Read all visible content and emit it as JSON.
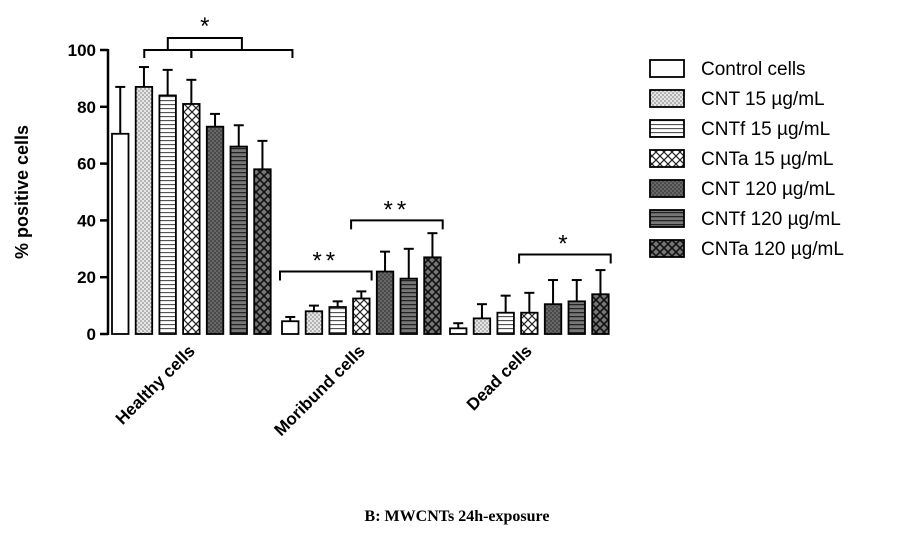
{
  "chart_data": {
    "type": "bar",
    "title": "",
    "xlabel": "",
    "ylabel": "% positive cells",
    "ylim": [
      0,
      100
    ],
    "yticks": [
      0,
      20,
      40,
      60,
      80,
      100
    ],
    "categories": [
      "Healthy cells",
      "Moribund cells",
      "Dead cells"
    ],
    "grid": false,
    "legend_position": "right",
    "series": [
      {
        "name": "Control cells",
        "pattern": "white",
        "values": [
          70.5,
          4.5,
          2.0
        ],
        "errors": [
          16.5,
          1.5,
          1.8
        ]
      },
      {
        "name": "CNT 15 µg/mL",
        "pattern": "dots",
        "values": [
          87.0,
          8.0,
          5.5
        ],
        "errors": [
          7.0,
          2.0,
          5.0
        ]
      },
      {
        "name": "CNTf 15 µg/mL",
        "pattern": "hlines",
        "values": [
          84.0,
          9.5,
          7.5
        ],
        "errors": [
          9.0,
          2.0,
          6.0
        ]
      },
      {
        "name": "CNTa 15 µg/mL",
        "pattern": "crosshatch",
        "values": [
          81.0,
          12.5,
          7.5
        ],
        "errors": [
          8.5,
          2.5,
          7.0
        ]
      },
      {
        "name": "CNT 120 µg/mL",
        "pattern": "dark-dots",
        "values": [
          73.0,
          22.0,
          10.5
        ],
        "errors": [
          4.5,
          7.0,
          8.5
        ]
      },
      {
        "name": "CNTf 120 µg/mL",
        "pattern": "dark-hlines",
        "values": [
          66.0,
          19.5,
          11.5
        ],
        "errors": [
          7.5,
          10.5,
          7.5
        ]
      },
      {
        "name": "CNTa 120 µg/mL",
        "pattern": "dark-cross",
        "values": [
          58.0,
          27.0,
          14.0
        ],
        "errors": [
          10.0,
          8.5,
          8.5
        ]
      }
    ],
    "annotations": [
      {
        "label": "*",
        "group": 0,
        "type": "double-bracket",
        "y": 100
      },
      {
        "label": "**",
        "group": 1,
        "from": 0,
        "to": 3,
        "y": 22
      },
      {
        "label": "**",
        "group": 1,
        "from": 3,
        "to": 6,
        "y": 40
      },
      {
        "label": "*",
        "group": 2,
        "from": 3,
        "to": 6,
        "y": 28
      }
    ]
  },
  "caption": "B: MWCNTs 24h-exposure"
}
